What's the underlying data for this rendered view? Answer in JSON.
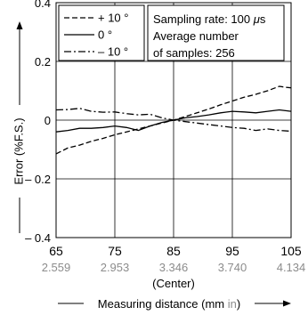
{
  "chart_data": {
    "type": "line",
    "xlabel": "Measuring distance (mm",
    "xlabel_unit": "in",
    "xlabel_close": ")",
    "ylabel": "Error (%F.S.)",
    "xlim": [
      65,
      105
    ],
    "ylim": [
      -0.4,
      0.4
    ],
    "grid": true,
    "x_ticks": [
      65,
      75,
      85,
      95,
      105
    ],
    "x_ticks_in": [
      "2.559",
      "2.953",
      "3.346",
      "3.740",
      "4.134"
    ],
    "y_ticks": [
      {
        "value": 0.4,
        "label": "0.4"
      },
      {
        "value": 0.2,
        "label": "0.2"
      },
      {
        "value": 0,
        "label": "0"
      },
      {
        "value": -0.2,
        "label": "– 0.2"
      },
      {
        "value": -0.4,
        "label": "– 0.4"
      }
    ],
    "center_label": "(Center)",
    "legend_position": "top-left",
    "colors": {
      "line": "#000000",
      "inch_text": "#8c8c8c",
      "grid": "#000000"
    },
    "annotation": {
      "lines": [
        "Sampling rate: 100 ",
        "Average number",
        "of samples: 256"
      ],
      "unit_symbol": "μ",
      "unit_letter": "s"
    },
    "series": [
      {
        "name": "+ 10 °",
        "dash": "dashed",
        "points": [
          [
            65,
            -0.115
          ],
          [
            67,
            -0.095
          ],
          [
            69,
            -0.085
          ],
          [
            71,
            -0.072
          ],
          [
            73,
            -0.062
          ],
          [
            75,
            -0.05
          ],
          [
            77,
            -0.04
          ],
          [
            79,
            -0.03
          ],
          [
            81,
            -0.02
          ],
          [
            83,
            -0.01
          ],
          [
            85,
            0.0
          ],
          [
            87,
            0.012
          ],
          [
            89,
            0.025
          ],
          [
            91,
            0.038
          ],
          [
            93,
            0.052
          ],
          [
            95,
            0.065
          ],
          [
            97,
            0.078
          ],
          [
            99,
            0.088
          ],
          [
            101,
            0.1
          ],
          [
            103,
            0.115
          ],
          [
            104,
            0.112
          ],
          [
            105,
            0.11
          ]
        ]
      },
      {
        "name": "0 °",
        "dash": "solid",
        "points": [
          [
            65,
            -0.04
          ],
          [
            67,
            -0.035
          ],
          [
            69,
            -0.028
          ],
          [
            71,
            -0.028
          ],
          [
            73,
            -0.025
          ],
          [
            75,
            -0.02
          ],
          [
            77,
            -0.025
          ],
          [
            79,
            -0.035
          ],
          [
            81,
            -0.02
          ],
          [
            83,
            -0.008
          ],
          [
            85,
            0.0
          ],
          [
            87,
            0.008
          ],
          [
            89,
            0.012
          ],
          [
            91,
            0.018
          ],
          [
            93,
            0.025
          ],
          [
            95,
            0.03
          ],
          [
            97,
            0.028
          ],
          [
            99,
            0.025
          ],
          [
            101,
            0.03
          ],
          [
            103,
            0.035
          ],
          [
            105,
            0.03
          ]
        ]
      },
      {
        "name": "– 10 °",
        "dash": "dashdot",
        "points": [
          [
            65,
            0.035
          ],
          [
            67,
            0.036
          ],
          [
            69,
            0.04
          ],
          [
            71,
            0.03
          ],
          [
            73,
            0.027
          ],
          [
            75,
            0.028
          ],
          [
            77,
            0.022
          ],
          [
            79,
            0.018
          ],
          [
            81,
            0.02
          ],
          [
            83,
            0.008
          ],
          [
            85,
            0.0
          ],
          [
            87,
            -0.005
          ],
          [
            89,
            -0.01
          ],
          [
            91,
            -0.015
          ],
          [
            93,
            -0.02
          ],
          [
            95,
            -0.025
          ],
          [
            97,
            -0.028
          ],
          [
            99,
            -0.035
          ],
          [
            101,
            -0.03
          ],
          [
            103,
            -0.035
          ],
          [
            105,
            -0.038
          ]
        ]
      }
    ]
  }
}
